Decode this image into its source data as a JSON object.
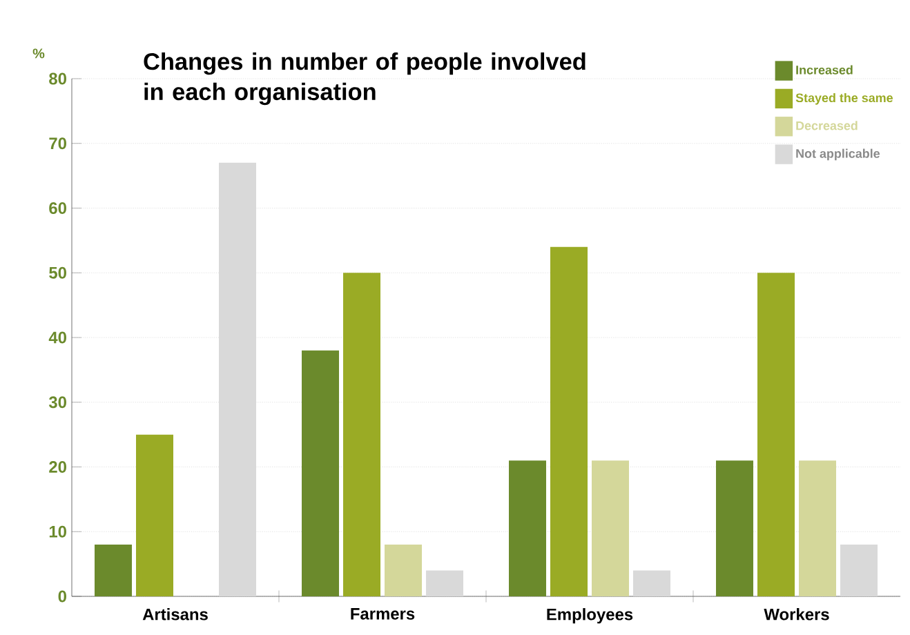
{
  "chart_data": {
    "type": "bar",
    "title": "Changes in number of people involved in each organisation",
    "ylabel": "%",
    "categories": [
      "Artisans",
      "Farmers",
      "Employees",
      "Workers"
    ],
    "series": [
      {
        "name": "Increased",
        "color": "#6b8a2c",
        "values": [
          8,
          38,
          21,
          21
        ]
      },
      {
        "name": "Stayed the same",
        "color": "#9aab25",
        "values": [
          25,
          50,
          54,
          50
        ]
      },
      {
        "name": "Decreased",
        "color": "#d4d79a",
        "values": [
          null,
          8,
          21,
          21
        ]
      },
      {
        "name": "Not applicable",
        "color": "#d9d9d9",
        "values": [
          67,
          4,
          4,
          8
        ]
      }
    ],
    "ylim": [
      0,
      80
    ],
    "yticks": [
      0,
      10,
      20,
      30,
      40,
      50,
      60,
      70,
      80
    ],
    "grid": "y",
    "legend": "top right"
  }
}
